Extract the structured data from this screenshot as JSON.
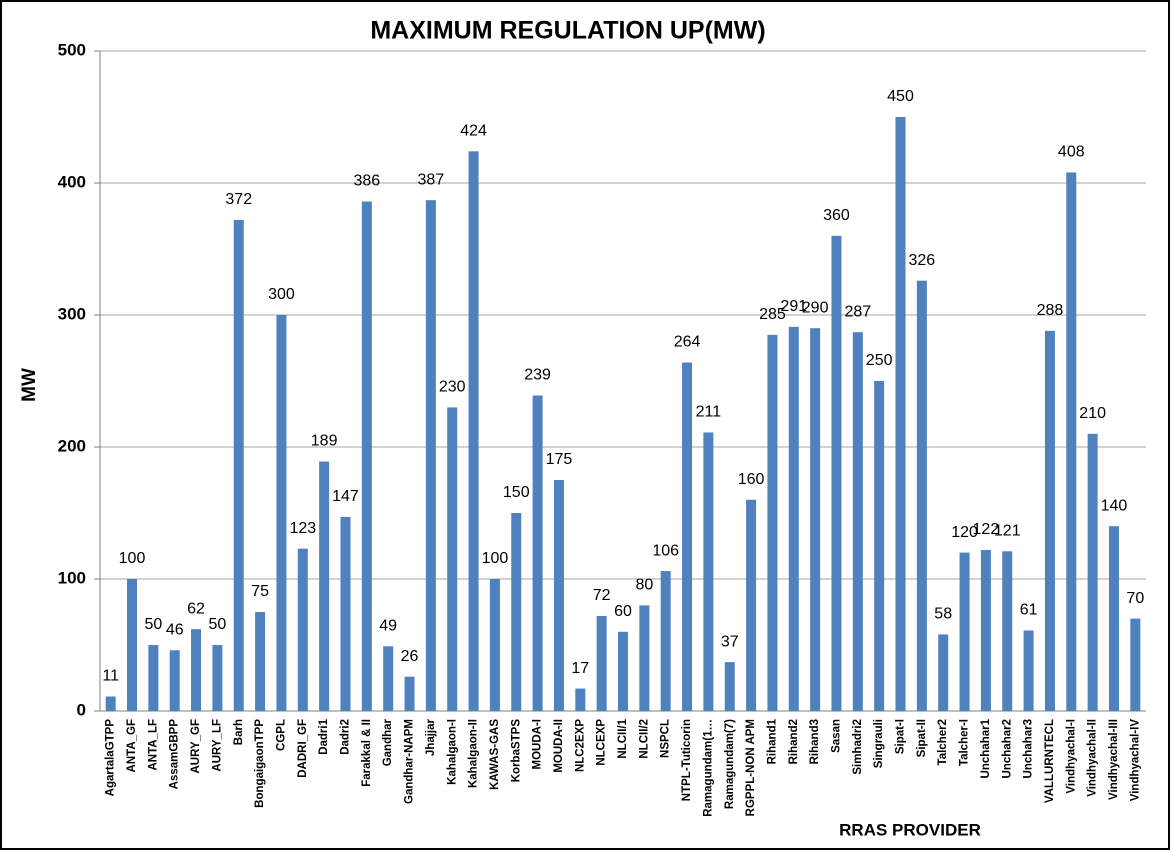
{
  "chart_data": {
    "type": "bar",
    "title": "MAXIMUM REGULATION UP(MW)",
    "y_label": "MW",
    "x_label": "RRAS PROVIDER",
    "categories": [
      "AgartalaGTPP",
      "ANTA_GF",
      "ANTA_LF",
      "AssamGBPP",
      "AURY_GF",
      "AURY_LF",
      "Barh",
      "BongaigaonTPP",
      "CGPL",
      "DADRI_GF",
      "Dadri1",
      "Dadri2",
      "Farakkal & II",
      "Gandhar",
      "Gandhar-NAPM",
      "Jhajjar",
      "Kahalgaon-I",
      "Kahalgaon-II",
      "KAWAS-GAS",
      "KorbaSTPS",
      "MOUDA-I",
      "MOUDA-II",
      "NLC2EXP",
      "NLCEXP",
      "NLCII/1",
      "NLCII/2",
      "NSPCL",
      "NTPL-Tuticorin",
      "Ramagundam(1…",
      "Ramagundam(7)",
      "RGPPL-NON APM",
      "Rihand1",
      "Rihand2",
      "Rihand3",
      "Sasan",
      "Simhadri2",
      "Singrauli",
      "Sipat-I",
      "Sipat-II",
      "Talcher2",
      "Talcher-I",
      "Unchahar1",
      "Unchahar2",
      "Unchahar3",
      "VALLURNTECL",
      "Vindhyachal-I",
      "Vindhyachal-II",
      "Vindhyachal-III",
      "Vindhyachal-IV"
    ],
    "values": [
      11,
      100,
      50,
      46,
      62,
      50,
      372,
      75,
      300,
      123,
      189,
      147,
      386,
      49,
      26,
      387,
      230,
      424,
      100,
      150,
      239,
      175,
      17,
      72,
      60,
      80,
      106,
      264,
      211,
      37,
      160,
      285,
      291,
      290,
      360,
      287,
      250,
      450,
      326,
      58,
      120,
      122,
      121,
      61,
      288,
      408,
      210,
      140,
      70
    ],
    "color": "#4f81bd",
    "ylim": [
      0,
      500
    ],
    "yticks": [
      0,
      100,
      200,
      300,
      400,
      500
    ],
    "grid": true
  }
}
